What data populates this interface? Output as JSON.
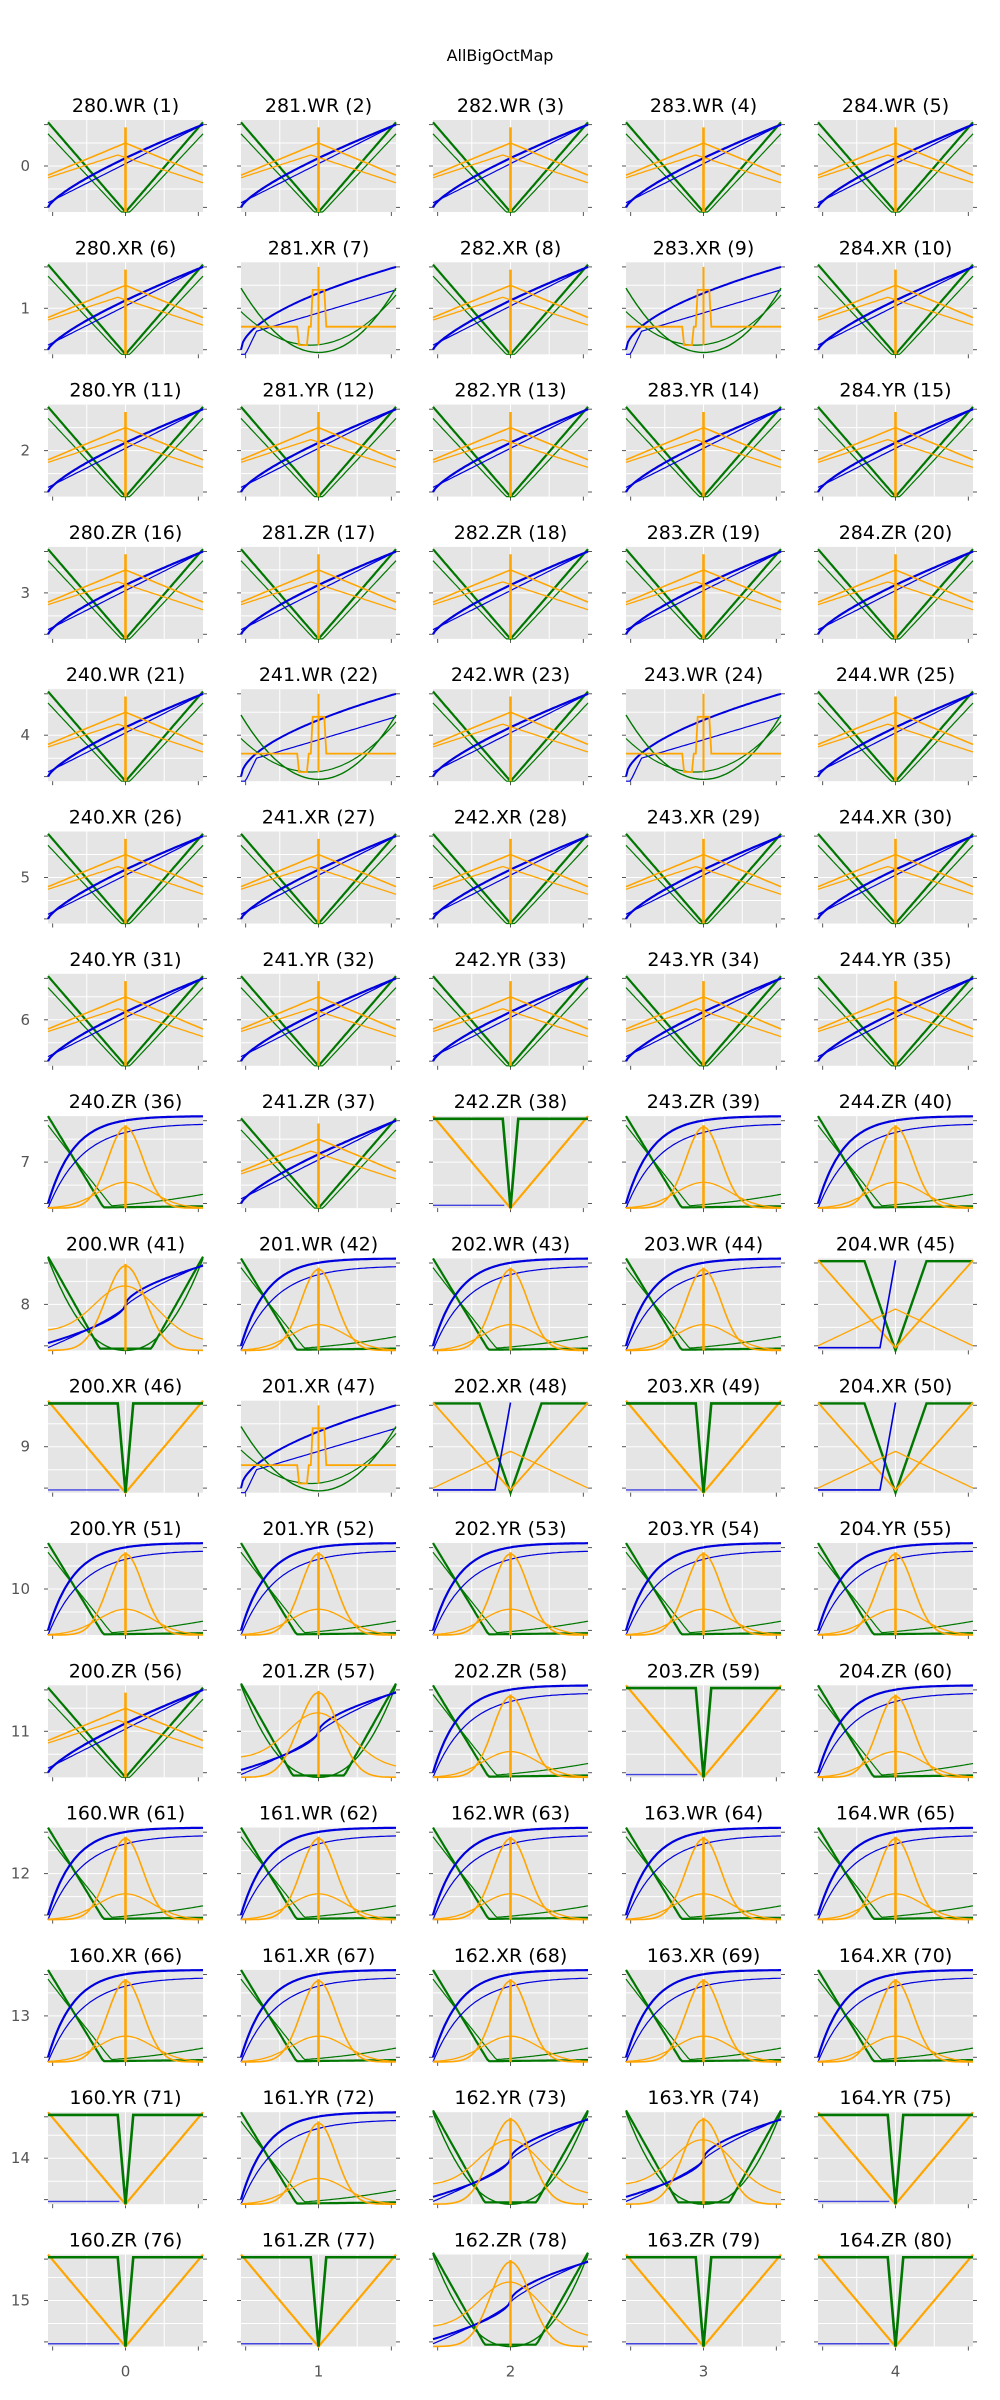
{
  "chart_data": {
    "type": "line",
    "title": "AllBigOctMap",
    "grid": true,
    "rows": 16,
    "cols": 5,
    "row_tick_labels": [
      "0",
      "1",
      "2",
      "3",
      "4",
      "5",
      "6",
      "7",
      "8",
      "9",
      "10",
      "11",
      "12",
      "13",
      "14",
      "15"
    ],
    "col_tick_labels": [
      "0",
      "1",
      "2",
      "3",
      "4"
    ],
    "colors": {
      "blue": "#0000dd",
      "green": "#007700",
      "orange": "#ffa500",
      "panel": "#e5e5e5"
    },
    "panels": [
      {
        "title": "280.WR (1)",
        "shape": "a"
      },
      {
        "title": "281.WR (2)",
        "shape": "a"
      },
      {
        "title": "282.WR (3)",
        "shape": "a"
      },
      {
        "title": "283.WR (4)",
        "shape": "a"
      },
      {
        "title": "284.WR (5)",
        "shape": "a"
      },
      {
        "title": "280.XR (6)",
        "shape": "a"
      },
      {
        "title": "281.XR (7)",
        "shape": "e"
      },
      {
        "title": "282.XR (8)",
        "shape": "a"
      },
      {
        "title": "283.XR (9)",
        "shape": "e"
      },
      {
        "title": "284.XR (10)",
        "shape": "a"
      },
      {
        "title": "280.YR (11)",
        "shape": "a"
      },
      {
        "title": "281.YR (12)",
        "shape": "a"
      },
      {
        "title": "282.YR (13)",
        "shape": "a"
      },
      {
        "title": "283.YR (14)",
        "shape": "a"
      },
      {
        "title": "284.YR (15)",
        "shape": "a"
      },
      {
        "title": "280.ZR (16)",
        "shape": "a"
      },
      {
        "title": "281.ZR (17)",
        "shape": "a"
      },
      {
        "title": "282.ZR (18)",
        "shape": "a"
      },
      {
        "title": "283.ZR (19)",
        "shape": "a"
      },
      {
        "title": "284.ZR (20)",
        "shape": "a"
      },
      {
        "title": "240.WR (21)",
        "shape": "a"
      },
      {
        "title": "241.WR (22)",
        "shape": "e"
      },
      {
        "title": "242.WR (23)",
        "shape": "a"
      },
      {
        "title": "243.WR (24)",
        "shape": "e"
      },
      {
        "title": "244.WR (25)",
        "shape": "a"
      },
      {
        "title": "240.XR (26)",
        "shape": "a"
      },
      {
        "title": "241.XR (27)",
        "shape": "a"
      },
      {
        "title": "242.XR (28)",
        "shape": "a"
      },
      {
        "title": "243.XR (29)",
        "shape": "a"
      },
      {
        "title": "244.XR (30)",
        "shape": "a"
      },
      {
        "title": "240.YR (31)",
        "shape": "a"
      },
      {
        "title": "241.YR (32)",
        "shape": "a"
      },
      {
        "title": "242.YR (33)",
        "shape": "a"
      },
      {
        "title": "243.YR (34)",
        "shape": "a"
      },
      {
        "title": "244.YR (35)",
        "shape": "a"
      },
      {
        "title": "240.ZR (36)",
        "shape": "b"
      },
      {
        "title": "241.ZR (37)",
        "shape": "a"
      },
      {
        "title": "242.ZR (38)",
        "shape": "c"
      },
      {
        "title": "243.ZR (39)",
        "shape": "b"
      },
      {
        "title": "244.ZR (40)",
        "shape": "b"
      },
      {
        "title": "200.WR (41)",
        "shape": "f"
      },
      {
        "title": "201.WR (42)",
        "shape": "b"
      },
      {
        "title": "202.WR (43)",
        "shape": "b"
      },
      {
        "title": "203.WR (44)",
        "shape": "b"
      },
      {
        "title": "204.WR (45)",
        "shape": "d"
      },
      {
        "title": "200.XR (46)",
        "shape": "c"
      },
      {
        "title": "201.XR (47)",
        "shape": "e"
      },
      {
        "title": "202.XR (48)",
        "shape": "d"
      },
      {
        "title": "203.XR (49)",
        "shape": "c"
      },
      {
        "title": "204.XR (50)",
        "shape": "d"
      },
      {
        "title": "200.YR (51)",
        "shape": "b"
      },
      {
        "title": "201.YR (52)",
        "shape": "b"
      },
      {
        "title": "202.YR (53)",
        "shape": "b"
      },
      {
        "title": "203.YR (54)",
        "shape": "b"
      },
      {
        "title": "204.YR (55)",
        "shape": "b"
      },
      {
        "title": "200.ZR (56)",
        "shape": "a"
      },
      {
        "title": "201.ZR (57)",
        "shape": "f"
      },
      {
        "title": "202.ZR (58)",
        "shape": "b"
      },
      {
        "title": "203.ZR (59)",
        "shape": "c"
      },
      {
        "title": "204.ZR (60)",
        "shape": "b"
      },
      {
        "title": "160.WR (61)",
        "shape": "b"
      },
      {
        "title": "161.WR (62)",
        "shape": "b"
      },
      {
        "title": "162.WR (63)",
        "shape": "b"
      },
      {
        "title": "163.WR (64)",
        "shape": "b"
      },
      {
        "title": "164.WR (65)",
        "shape": "b"
      },
      {
        "title": "160.XR (66)",
        "shape": "b"
      },
      {
        "title": "161.XR (67)",
        "shape": "b"
      },
      {
        "title": "162.XR (68)",
        "shape": "b"
      },
      {
        "title": "163.XR (69)",
        "shape": "b"
      },
      {
        "title": "164.XR (70)",
        "shape": "b"
      },
      {
        "title": "160.YR (71)",
        "shape": "c"
      },
      {
        "title": "161.YR (72)",
        "shape": "b"
      },
      {
        "title": "162.YR (73)",
        "shape": "f"
      },
      {
        "title": "163.YR (74)",
        "shape": "f"
      },
      {
        "title": "164.YR (75)",
        "shape": "c"
      },
      {
        "title": "160.ZR (76)",
        "shape": "c"
      },
      {
        "title": "161.ZR (77)",
        "shape": "c"
      },
      {
        "title": "162.ZR (78)",
        "shape": "f"
      },
      {
        "title": "163.ZR (79)",
        "shape": "c"
      },
      {
        "title": "164.ZR (80)",
        "shape": "c"
      }
    ]
  }
}
